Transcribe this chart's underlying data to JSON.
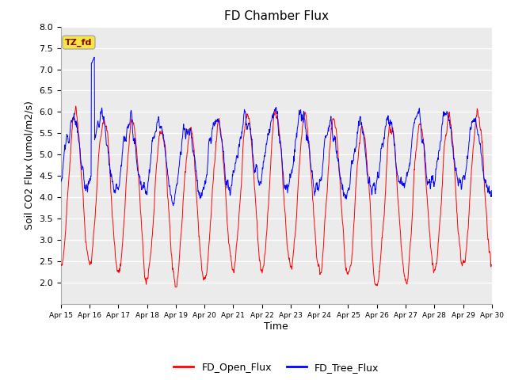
{
  "title": "FD Chamber Flux",
  "xlabel": "Time",
  "ylabel": "Soil CO2 Flux (umol/m2/s)",
  "ylim": [
    1.5,
    8.0
  ],
  "yticks": [
    2.0,
    2.5,
    3.0,
    3.5,
    4.0,
    4.5,
    5.0,
    5.5,
    6.0,
    6.5,
    7.0,
    7.5,
    8.0
  ],
  "legend_labels": [
    "FD_Open_Flux",
    "FD_Tree_Flux"
  ],
  "line_color_open": "red",
  "line_color_tree": "blue",
  "annotation_text": "TZ_fd",
  "annotation_color": "#8b0000",
  "annotation_bg": "#f5e642",
  "n_days": 15,
  "start_day": 15,
  "points_per_day": 96,
  "seed": 7
}
